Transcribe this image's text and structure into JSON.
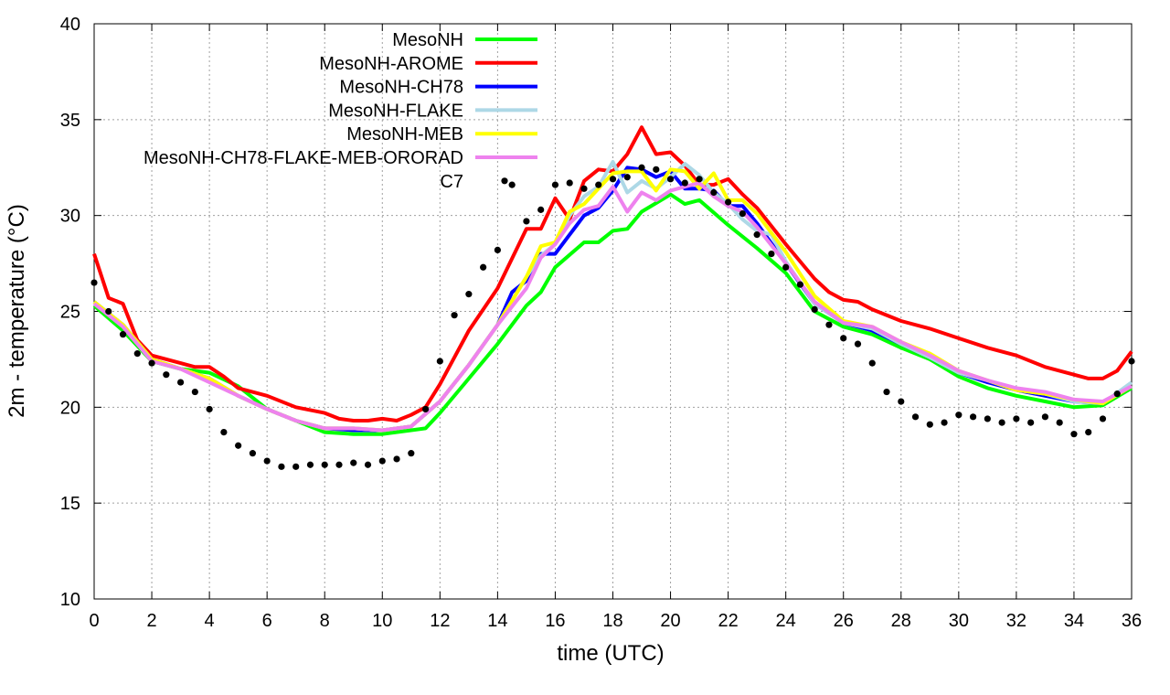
{
  "chart_data": {
    "type": "line",
    "title": "",
    "xlabel": "time (UTC)",
    "ylabel": "2m - temperature (°C)",
    "xlim": [
      0,
      36
    ],
    "ylim": [
      10,
      40
    ],
    "xticks": [
      0,
      2,
      4,
      6,
      8,
      10,
      12,
      14,
      16,
      18,
      20,
      22,
      24,
      26,
      28,
      30,
      32,
      34,
      36
    ],
    "yticks": [
      10,
      15,
      20,
      25,
      30,
      35,
      40
    ],
    "grid": true,
    "legend_position": "top-left",
    "series": [
      {
        "name": "MesoNH",
        "color": "#00ff00",
        "style": "line",
        "x": [
          0,
          1,
          2,
          3,
          4,
          5,
          6,
          7,
          8,
          9,
          10,
          11,
          11.5,
          12,
          13,
          14,
          15,
          15.5,
          16,
          17,
          17.5,
          18,
          18.5,
          19,
          20,
          20.5,
          21,
          22,
          23,
          24,
          25,
          26,
          27,
          28,
          29,
          30,
          31,
          32,
          33,
          34,
          35,
          36
        ],
        "y": [
          25.3,
          24,
          22.4,
          22,
          21.8,
          21.1,
          19.9,
          19.3,
          18.7,
          18.6,
          18.6,
          18.8,
          18.9,
          19.7,
          21.5,
          23.3,
          25.3,
          26,
          27.3,
          28.6,
          28.6,
          29.2,
          29.3,
          30.2,
          31.1,
          30.6,
          30.8,
          29.5,
          28.3,
          27.0,
          25.0,
          24.2,
          23.8,
          23.1,
          22.5,
          21.6,
          21.0,
          20.6,
          20.3,
          20.0,
          20.1,
          21.0
        ]
      },
      {
        "name": "MesoNH-AROME",
        "color": "#ff0000",
        "style": "line",
        "x": [
          0,
          0.5,
          1,
          1.5,
          2,
          3,
          3.5,
          4,
          4.5,
          5,
          6,
          7,
          8,
          8.5,
          9,
          9.5,
          10,
          10.5,
          11,
          11.5,
          12,
          13,
          14,
          15,
          15.5,
          16,
          16.5,
          17,
          17.5,
          18,
          18.5,
          19,
          19.5,
          20,
          20.5,
          21,
          21.5,
          22,
          22.5,
          23,
          24,
          25,
          25.5,
          26,
          26.5,
          27,
          28,
          29,
          30,
          31,
          32,
          33,
          34,
          34.5,
          35,
          35.5,
          36
        ],
        "y": [
          28,
          25.7,
          25.4,
          23.5,
          22.7,
          22.3,
          22.1,
          22.1,
          21.6,
          21.0,
          20.6,
          20.0,
          19.7,
          19.4,
          19.3,
          19.3,
          19.4,
          19.3,
          19.6,
          20.0,
          21.2,
          24.0,
          26.2,
          29.3,
          29.3,
          30.9,
          29.8,
          31.8,
          32.4,
          32.3,
          33.2,
          34.6,
          33.2,
          33.3,
          32.6,
          31.6,
          31.6,
          31.9,
          31.1,
          30.4,
          28.5,
          26.7,
          26.0,
          25.6,
          25.5,
          25.1,
          24.5,
          24.1,
          23.6,
          23.1,
          22.7,
          22.1,
          21.7,
          21.5,
          21.5,
          21.9,
          22.9
        ]
      },
      {
        "name": "MesoNH-CH78",
        "color": "#0000ff",
        "style": "line",
        "x": [
          0,
          1,
          2,
          3,
          4,
          5,
          6,
          7,
          8,
          9,
          10,
          11,
          12,
          13,
          14,
          14.5,
          15,
          15.5,
          16,
          16.5,
          17,
          17.5,
          18,
          18.5,
          19,
          19.5,
          20,
          20.5,
          21,
          21.5,
          22,
          22.5,
          23,
          24,
          25,
          26,
          27,
          28,
          29,
          30,
          31,
          32,
          33,
          34,
          35,
          36
        ],
        "y": [
          25.5,
          24.3,
          22.5,
          22,
          21.5,
          20.6,
          19.9,
          19.3,
          18.9,
          18.8,
          18.8,
          19.0,
          20.3,
          22.2,
          24.3,
          26.0,
          26.6,
          28.0,
          28.0,
          29.0,
          30.0,
          30.4,
          31.3,
          32.5,
          32.4,
          32.0,
          32.3,
          31.4,
          31.4,
          31.3,
          30.5,
          30.5,
          29.6,
          27.5,
          25.4,
          24.4,
          24.0,
          23.3,
          22.6,
          21.8,
          21.3,
          20.9,
          20.6,
          20.3,
          20.2,
          21.1
        ]
      },
      {
        "name": "MesoNH-FLAKE",
        "color": "#add8e6",
        "style": "line",
        "x": [
          0,
          1,
          2,
          3,
          4,
          5,
          6,
          7,
          8,
          9,
          10,
          11,
          12,
          13,
          14,
          15,
          15.5,
          16,
          16.5,
          17,
          17.5,
          18,
          18.5,
          19,
          19.5,
          20,
          20.5,
          21,
          21.5,
          22,
          22.5,
          23,
          23.5,
          24,
          25,
          26,
          27,
          28,
          29,
          30,
          31,
          32,
          33,
          34,
          35,
          36
        ],
        "y": [
          25.5,
          24.3,
          22.5,
          22,
          21.5,
          20.6,
          19.9,
          19.3,
          18.9,
          18.9,
          18.8,
          19.0,
          20.3,
          22.2,
          24.3,
          26.8,
          27.9,
          28.5,
          30.0,
          31.0,
          31.5,
          32.8,
          31.2,
          31.8,
          31.4,
          32.0,
          32.7,
          32.1,
          31.2,
          30.6,
          29.8,
          29.2,
          29.0,
          27.6,
          25.4,
          24.4,
          24.1,
          23.3,
          22.6,
          21.8,
          21.4,
          20.9,
          20.7,
          20.3,
          20.2,
          21.3
        ]
      },
      {
        "name": "MesoNH-MEB",
        "color": "#ffff00",
        "style": "line",
        "x": [
          0,
          1,
          2,
          3,
          4,
          5,
          6,
          7,
          8,
          9,
          10,
          11,
          12,
          13,
          14,
          15,
          15.5,
          16,
          16.5,
          17,
          17.5,
          18,
          18.5,
          19,
          19.5,
          20,
          20.5,
          21,
          21.5,
          22,
          22.5,
          23,
          24,
          25,
          26,
          27,
          28,
          29,
          30,
          31,
          32,
          33,
          34,
          35,
          36
        ],
        "y": [
          25.5,
          24.3,
          22.5,
          22,
          21.5,
          20.6,
          19.9,
          19.3,
          18.9,
          18.9,
          18.8,
          19.0,
          20.3,
          22.2,
          24.3,
          26.8,
          28.4,
          28.6,
          30.2,
          30.6,
          31.4,
          32.2,
          32.3,
          32.3,
          31.3,
          32.4,
          32.3,
          31.4,
          32.2,
          30.8,
          30.8,
          30.1,
          28.1,
          25.8,
          24.5,
          24.2,
          23.4,
          22.8,
          21.9,
          21.4,
          20.9,
          20.7,
          20.4,
          20.2,
          21.1
        ]
      },
      {
        "name": "MesoNH-CH78-FLAKE-MEB-ORORAD",
        "color": "#ee82ee",
        "style": "line",
        "x": [
          0,
          1,
          2,
          3,
          4,
          5,
          6,
          7,
          8,
          9,
          10,
          11,
          12,
          13,
          14,
          15,
          15.5,
          16,
          16.5,
          17,
          17.5,
          18,
          18.5,
          19,
          19.5,
          20,
          20.5,
          21,
          21.5,
          22,
          22.5,
          23,
          24,
          25,
          26,
          27,
          28,
          29,
          30,
          31,
          32,
          33,
          34,
          35,
          36
        ],
        "y": [
          25.4,
          24.2,
          22.4,
          22,
          21.3,
          20.6,
          19.9,
          19.3,
          18.9,
          18.9,
          18.8,
          19.0,
          20.3,
          22.2,
          24.3,
          26.2,
          27.8,
          28.5,
          29.6,
          30.3,
          30.5,
          31.5,
          30.2,
          31.2,
          30.8,
          31.3,
          31.5,
          31.7,
          31.0,
          30.5,
          30.2,
          29.4,
          27.5,
          25.5,
          24.4,
          24.2,
          23.4,
          22.7,
          21.9,
          21.4,
          21.0,
          20.8,
          20.4,
          20.3,
          21.1
        ]
      },
      {
        "name": "C7",
        "color": "#000000",
        "style": "points",
        "x": [
          0,
          0.5,
          1,
          1.5,
          2,
          2.5,
          3,
          3.5,
          4,
          4.5,
          5,
          5.5,
          6,
          6.5,
          7,
          7.5,
          8,
          8.5,
          9,
          9.5,
          10,
          10.5,
          11,
          11.5,
          12,
          12.5,
          13,
          13.5,
          14,
          14.5,
          15,
          15.5,
          16,
          16.5,
          17,
          17.5,
          18,
          18.5,
          19,
          19.5,
          20,
          20.5,
          21,
          21.5,
          22,
          22.5,
          23,
          23.5,
          24,
          24.5,
          25,
          25.5,
          26,
          26.5,
          27,
          27.5,
          28,
          28.5,
          29,
          29.5,
          30,
          30.5,
          31,
          31.5,
          32,
          32.5,
          33,
          33.5,
          34,
          34.5,
          35,
          35.5,
          36
        ],
        "y": [
          26.5,
          25.0,
          23.8,
          22.8,
          22.3,
          21.7,
          21.3,
          20.8,
          19.9,
          18.7,
          18.0,
          17.6,
          17.2,
          16.9,
          16.9,
          17.0,
          17.0,
          17.0,
          17.1,
          17.0,
          17.2,
          17.3,
          17.6,
          19.9,
          22.4,
          24.8,
          25.9,
          27.3,
          28.2,
          31.6,
          29.7,
          30.3,
          31.6,
          31.7,
          31.4,
          31.6,
          31.9,
          32.0,
          32.5,
          32.4,
          31.9,
          31.7,
          31.9,
          31.2,
          30.7,
          30.1,
          29.0,
          28.0,
          27.3,
          26.4,
          25.1,
          24.3,
          23.6,
          23.3,
          22.3,
          20.8,
          20.3,
          19.5,
          19.1,
          19.2,
          19.6,
          19.5,
          19.4,
          19.2,
          19.4,
          19.2,
          19.5,
          19.2,
          18.6,
          18.7,
          19.4,
          20.7,
          22.4
        ]
      }
    ]
  }
}
